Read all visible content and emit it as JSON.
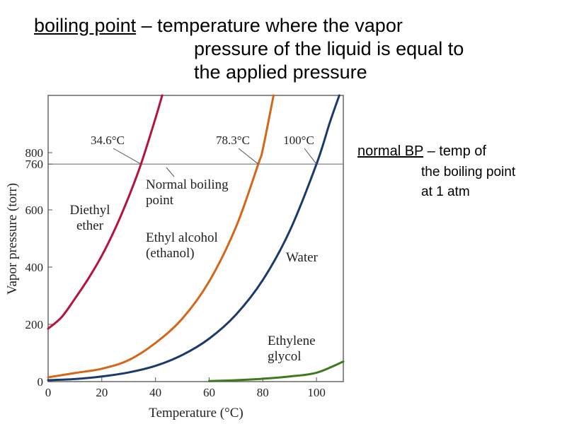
{
  "heading": {
    "term": "boiling point",
    "line1_rest": " – temperature where the vapor",
    "line2": "pressure of the liquid is equal to",
    "line3": "the applied pressure"
  },
  "side_note": {
    "term": "normal BP",
    "line1_rest": " – temp of",
    "line2": "the boiling point",
    "line3": "at 1 atm"
  },
  "chart_data": {
    "type": "line",
    "xlabel": "Temperature (°C)",
    "ylabel": "Vapor pressure (torr)",
    "xlim": [
      0,
      110
    ],
    "ylim": [
      0,
      1000
    ],
    "x_ticks": [
      0,
      20,
      40,
      60,
      80,
      100
    ],
    "y_ticks": [
      0,
      200,
      400,
      600,
      760,
      800
    ],
    "reference_line": {
      "y": 760,
      "label": "Normal boiling point"
    },
    "grid": false,
    "series": [
      {
        "name": "Diethyl ether",
        "color": "#b5123e",
        "boiling_point_label": "34.6°C",
        "boiling_point": 34.6,
        "points": [
          [
            0,
            185
          ],
          [
            5,
            225
          ],
          [
            10,
            290
          ],
          [
            15,
            360
          ],
          [
            20,
            440
          ],
          [
            25,
            535
          ],
          [
            30,
            645
          ],
          [
            34.6,
            760
          ],
          [
            40,
            920
          ],
          [
            42.5,
            1000
          ]
        ]
      },
      {
        "name": "Ethyl alcohol (ethanol)",
        "color": "#d4661a",
        "boiling_point_label": "78.3°C",
        "boiling_point": 78.3,
        "points": [
          [
            0,
            15
          ],
          [
            10,
            30
          ],
          [
            20,
            45
          ],
          [
            30,
            75
          ],
          [
            40,
            135
          ],
          [
            50,
            220
          ],
          [
            60,
            350
          ],
          [
            70,
            540
          ],
          [
            78.3,
            760
          ],
          [
            80,
            812
          ],
          [
            84,
            1000
          ]
        ]
      },
      {
        "name": "Water",
        "color": "#1b3a6b",
        "boiling_point_label": "100°C",
        "boiling_point": 100,
        "points": [
          [
            0,
            5
          ],
          [
            10,
            9
          ],
          [
            20,
            18
          ],
          [
            30,
            32
          ],
          [
            40,
            55
          ],
          [
            50,
            93
          ],
          [
            60,
            150
          ],
          [
            70,
            234
          ],
          [
            80,
            355
          ],
          [
            90,
            526
          ],
          [
            100,
            760
          ],
          [
            105,
            906
          ],
          [
            108.5,
            1000
          ]
        ]
      },
      {
        "name": "Ethylene glycol",
        "color": "#3d7a1e",
        "boiling_point_label": "",
        "boiling_point": null,
        "points": [
          [
            60,
            2
          ],
          [
            70,
            5
          ],
          [
            80,
            10
          ],
          [
            90,
            18
          ],
          [
            100,
            31
          ],
          [
            110,
            70
          ]
        ]
      }
    ]
  }
}
